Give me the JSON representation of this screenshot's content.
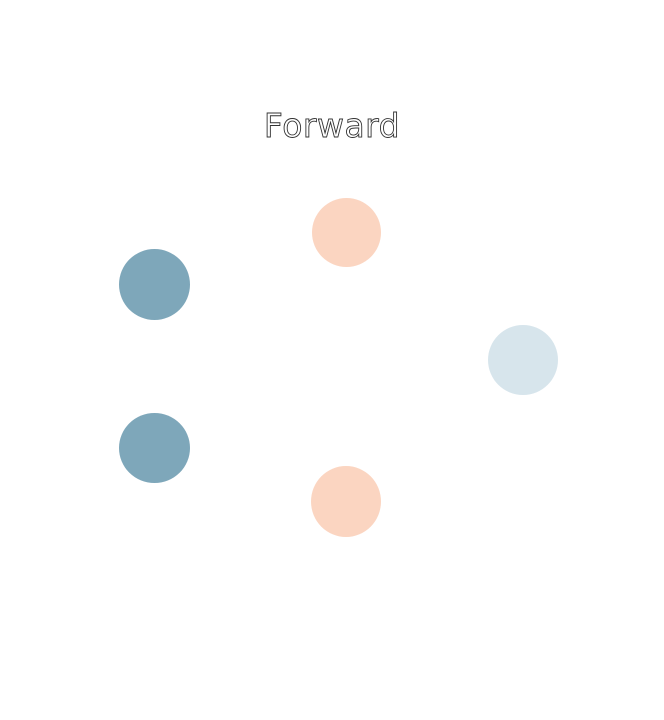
{
  "title": "Forward",
  "colors": {
    "input": "#7ea7ba",
    "hidden": "#fbd5c1",
    "output": "#d7e5ec"
  },
  "layers": {
    "input": {
      "nodes": [
        {
          "id": "n-in-1"
        },
        {
          "id": "n-in-2"
        }
      ]
    },
    "hidden": {
      "nodes": [
        {
          "id": "n-hid-1"
        },
        {
          "id": "n-hid-2"
        }
      ]
    },
    "output": {
      "nodes": [
        {
          "id": "n-out-1"
        }
      ]
    }
  }
}
